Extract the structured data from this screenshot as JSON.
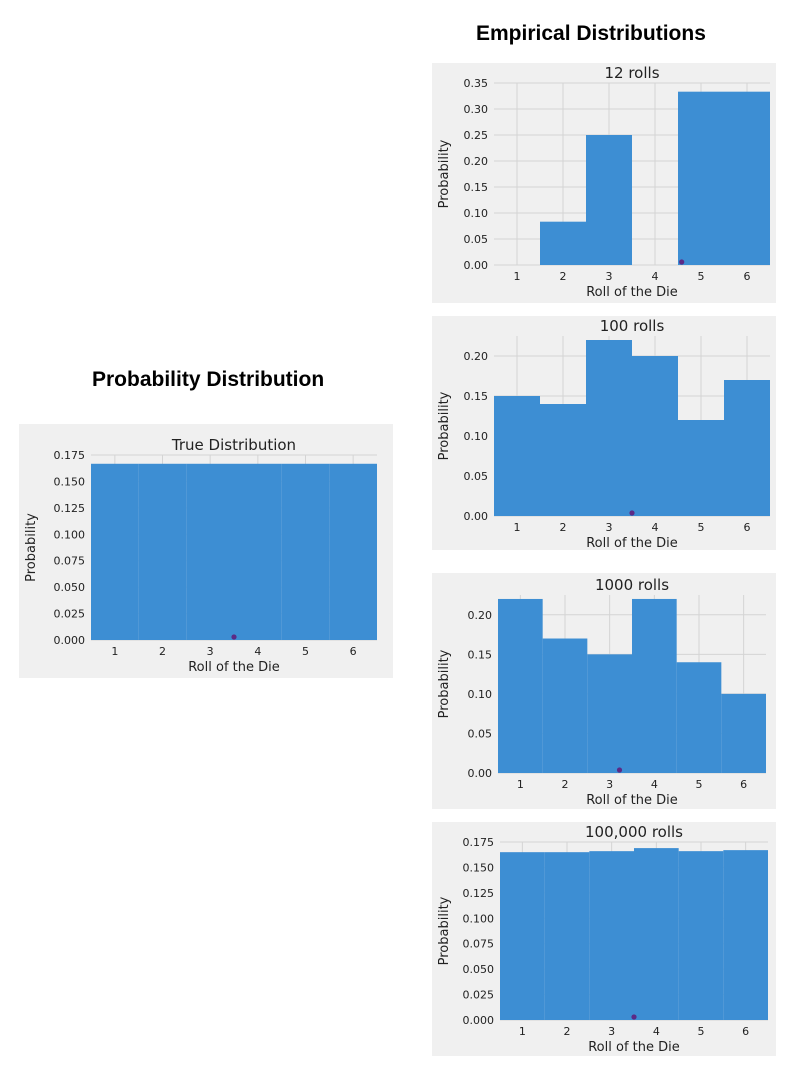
{
  "headings": {
    "probability": "Probability Distribution",
    "empirical": "Empirical Distributions"
  },
  "colors": {
    "bar": "#3d8ed3",
    "mean_marker": "#5b2a86",
    "panel_bg": "#f0f0f0",
    "grid": "#d4d4d4"
  },
  "chart_data": [
    {
      "type": "bar",
      "title": "True Distribution",
      "xlabel": "Roll of the Die",
      "ylabel": "Probability",
      "categories": [
        "1",
        "2",
        "3",
        "4",
        "5",
        "6"
      ],
      "values": [
        0.1667,
        0.1667,
        0.1667,
        0.1667,
        0.1667,
        0.1667
      ],
      "mean": 3.5,
      "ylim": [
        0,
        0.175
      ],
      "yticks": [
        "0.000",
        "0.025",
        "0.050",
        "0.075",
        "0.100",
        "0.125",
        "0.150",
        "0.175"
      ],
      "grid": true
    },
    {
      "type": "bar",
      "title": "12 rolls",
      "xlabel": "Roll of the Die",
      "ylabel": "Probability",
      "categories": [
        "1",
        "2",
        "3",
        "4",
        "5",
        "6"
      ],
      "values": [
        0,
        0.0833,
        0.25,
        0,
        0.3333,
        0.3333
      ],
      "mean": 4.58,
      "ylim": [
        0,
        0.35
      ],
      "yticks": [
        "0.00",
        "0.05",
        "0.10",
        "0.15",
        "0.20",
        "0.25",
        "0.30",
        "0.35"
      ],
      "grid": true
    },
    {
      "type": "bar",
      "title": "100 rolls",
      "xlabel": "Roll of the Die",
      "ylabel": "Probability",
      "categories": [
        "1",
        "2",
        "3",
        "4",
        "5",
        "6"
      ],
      "values": [
        0.15,
        0.14,
        0.22,
        0.2,
        0.12,
        0.17
      ],
      "mean": 3.5,
      "ylim": [
        0,
        0.225
      ],
      "yticks": [
        "0.00",
        "0.05",
        "0.10",
        "0.15",
        "0.20"
      ],
      "grid": true
    },
    {
      "type": "bar",
      "title": "1000 rolls",
      "xlabel": "Roll of the Die",
      "ylabel": "Probability",
      "categories": [
        "1",
        "2",
        "3",
        "4",
        "5",
        "6"
      ],
      "values": [
        0.22,
        0.17,
        0.15,
        0.22,
        0.14,
        0.1
      ],
      "mean": 3.22,
      "ylim": [
        0,
        0.225
      ],
      "yticks": [
        "0.00",
        "0.05",
        "0.10",
        "0.15",
        "0.20"
      ],
      "grid": true
    },
    {
      "type": "bar",
      "title": "100,000 rolls",
      "xlabel": "Roll of the Die",
      "ylabel": "Probability",
      "categories": [
        "1",
        "2",
        "3",
        "4",
        "5",
        "6"
      ],
      "values": [
        0.165,
        0.165,
        0.166,
        0.169,
        0.166,
        0.167
      ],
      "mean": 3.5,
      "ylim": [
        0,
        0.175
      ],
      "yticks": [
        "0.000",
        "0.025",
        "0.050",
        "0.075",
        "0.100",
        "0.125",
        "0.150",
        "0.175"
      ],
      "grid": true
    }
  ]
}
